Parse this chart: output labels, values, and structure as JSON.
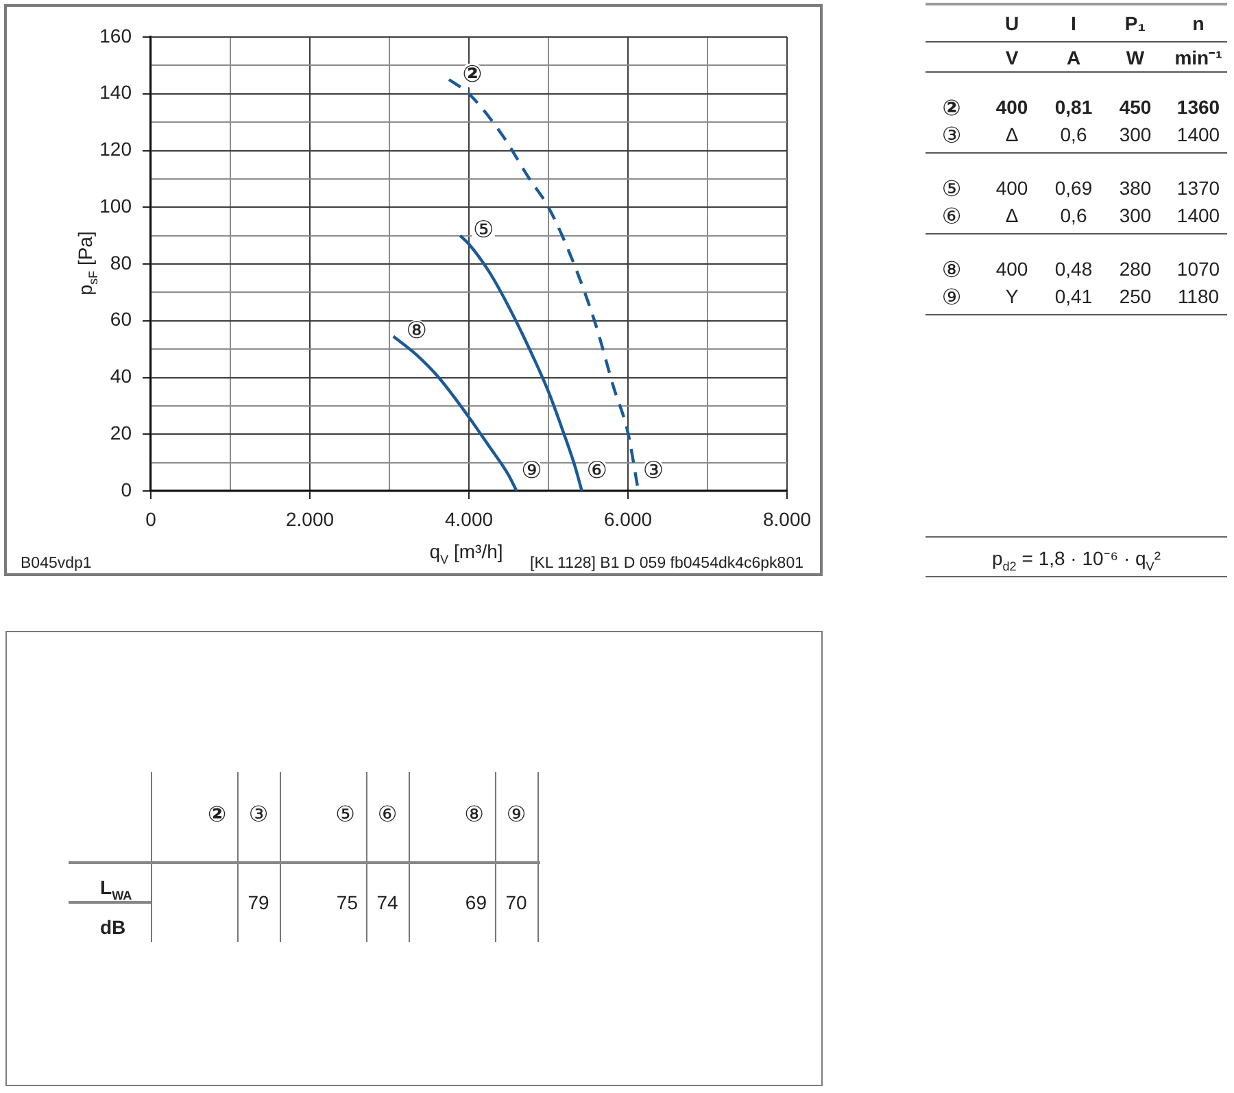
{
  "chart_data": [
    {
      "type": "line",
      "xlabel": "q$_{V}$ [m³/h]",
      "ylabel": "p$_{sF}$ [Pa]",
      "series": [
        {
          "color": "#1b5a98",
          "line_style": "dashed",
          "x": [
            3750,
            4000,
            4430,
            4750,
            5000,
            5300,
            5590,
            5820,
            6000,
            6130
          ],
          "values": [
            145,
            140,
            125,
            110.5,
            100,
            81.5,
            59,
            36.5,
            20.5,
            0
          ]
        },
        {
          "color": "#1b5a98",
          "x": [
            3890,
            4000,
            4260,
            4490,
            4720,
            5000,
            5190,
            5330,
            5420
          ],
          "values": [
            90,
            87,
            77,
            65.5,
            52.5,
            35,
            20.5,
            9,
            0
          ]
        },
        {
          "color": "#1b5a98",
          "x": [
            3050,
            3340,
            3620,
            4000,
            4260,
            4490,
            4600
          ],
          "values": [
            54.5,
            48,
            40,
            26,
            15.5,
            6,
            0
          ]
        }
      ],
      "xlim": [
        0,
        8000
      ],
      "ylim": [
        0,
        160
      ],
      "xticks": [
        0,
        {
          "value": 1000,
          "label": null
        },
        {
          "value": 2000,
          "label": "2.000"
        },
        {
          "value": 3000,
          "label": null
        },
        {
          "value": 4000,
          "label": "4.000"
        },
        {
          "value": 5000,
          "label": null
        },
        {
          "value": 6000,
          "label": "6.000"
        },
        {
          "value": 7000,
          "label": null
        },
        {
          "value": 8000,
          "label": "8.000"
        }
      ],
      "yticks": [
        0,
        {
          "value": 10,
          "label": null
        },
        20,
        {
          "value": 30,
          "label": null
        },
        40,
        {
          "value": 50,
          "label": null
        },
        60,
        {
          "value": 70,
          "label": null
        },
        80,
        {
          "value": 90,
          "label": null
        },
        100,
        {
          "value": 110,
          "label": null
        },
        120,
        {
          "value": 130,
          "label": null
        },
        140,
        {
          "value": 150,
          "label": null
        },
        160
      ],
      "grid": true,
      "marker": "none",
      "line_style": "solid",
      "annotations": [
        {
          "text": "②",
          "x": 3750,
          "y": 145
        },
        {
          "text": "③",
          "x": 6130,
          "y": 0
        },
        {
          "text": "⑤",
          "x": 3890,
          "y": 90
        },
        {
          "text": "⑥",
          "x": 5420,
          "y": 0
        },
        {
          "text": "⑧",
          "x": 3050,
          "y": 54.5
        },
        {
          "text": "⑨",
          "x": 4600,
          "y": 0
        },
        "B045vdp1",
        "[KL 1128] B1 D 059 fb0454dk4c6pk801"
      ]
    },
    {
      "type": "other",
      "categories": [
        "U",
        "I",
        "P₁",
        "n"
      ],
      "y_categories": [
        null,
        "②",
        "③",
        "⑤",
        "⑥",
        "⑧",
        "⑨"
      ],
      "cell_labels": [
        [
          "V",
          "A",
          "W",
          "min⁻¹"
        ],
        [
          "400",
          "0,81",
          "450",
          "1360"
        ],
        [
          "Δ",
          "0,6",
          "300",
          "1400"
        ],
        [
          "400",
          "0,69",
          "380",
          "1370"
        ],
        [
          "Δ",
          "0,6",
          "300",
          "1400"
        ],
        [
          "400",
          "0,48",
          "280",
          "1070"
        ],
        [
          "Y",
          "0,41",
          "250",
          "1180"
        ]
      ],
      "annotations": [
        "p$_{d2}$ = 1,8 · 10⁻⁶ · q$_{V}$²"
      ]
    },
    {
      "type": "other",
      "categories": [
        "②",
        "③",
        "⑤",
        "⑥",
        "⑧",
        "⑨"
      ],
      "values": [
        null,
        79,
        75,
        74,
        69,
        70
      ],
      "data_labels": true,
      "ylabel": "L$_{WA}$",
      "annotations": [
        "dB"
      ]
    }
  ]
}
